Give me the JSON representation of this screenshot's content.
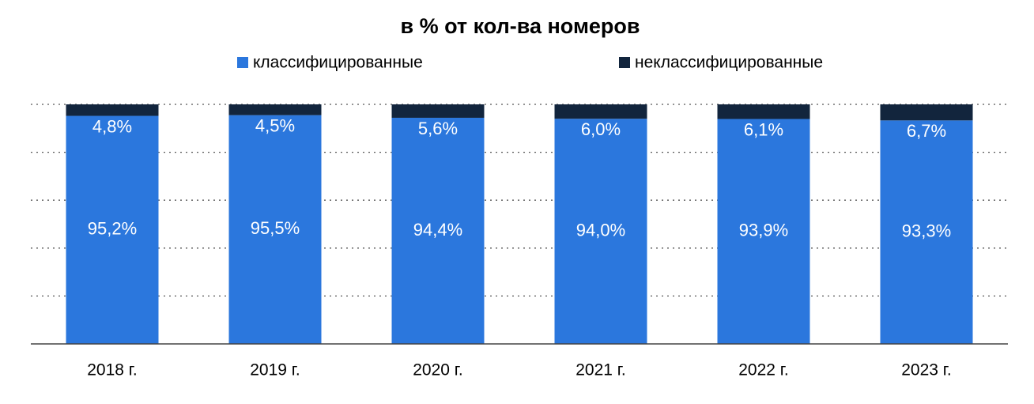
{
  "chart_data": {
    "type": "stacked_bar",
    "title": "в % от кол-ва номеров",
    "categories": [
      "2018 г.",
      "2019 г.",
      "2020 г.",
      "2021 г.",
      "2022 г.",
      "2023 г."
    ],
    "series": [
      {
        "name": "классифицированные",
        "color": "#2b77dd",
        "values": [
          95.2,
          95.5,
          94.4,
          94.0,
          93.9,
          93.3
        ],
        "value_labels": [
          "95,2%",
          "95,5%",
          "94,4%",
          "94,0%",
          "93,9%",
          "93,3%"
        ]
      },
      {
        "name": "неклассифицированные",
        "color": "#12253d",
        "values": [
          4.8,
          4.5,
          5.6,
          6.0,
          6.1,
          6.7
        ],
        "value_labels": [
          "4,8%",
          "4,5%",
          "5,6%",
          "6,0%",
          "6,1%",
          "6,7%"
        ]
      }
    ],
    "ylim": [
      0,
      100
    ],
    "yticks": [
      0,
      20,
      40,
      60,
      80,
      100
    ],
    "grid": true,
    "legend": "top"
  }
}
